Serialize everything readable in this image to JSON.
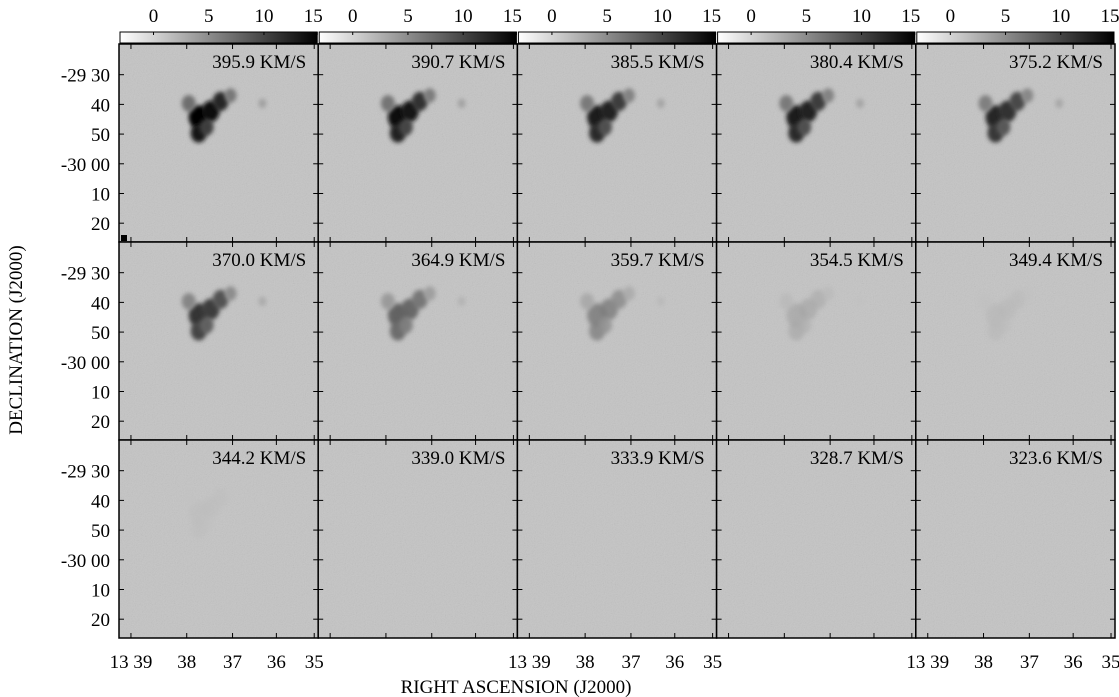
{
  "chart_data": {
    "type": "heatmap",
    "title": "",
    "xlabel": "RIGHT ASCENSION (J2000)",
    "ylabel": "DECLINATION (J2000)",
    "colorbar": {
      "ticks": [
        "0",
        "5",
        "10",
        "15"
      ],
      "range": [
        0,
        15
      ],
      "colormap": "white-to-black grayscale"
    },
    "y_ticks": [
      "-29 30",
      "40",
      "50",
      "-30 00",
      "10",
      "20"
    ],
    "x_ticks_bottom": [
      "13 39",
      "38",
      "37",
      "36",
      "35"
    ],
    "x_ticks_bottom_short": [
      "13 39",
      "38",
      "37",
      "36",
      "35"
    ],
    "grid": "3 rows x 5 columns channel maps",
    "background_color": "#c4c4c4",
    "panels": [
      {
        "label": "395.9 KM/S",
        "peak": 15
      },
      {
        "label": "390.7 KM/S",
        "peak": 14
      },
      {
        "label": "385.5 KM/S",
        "peak": 13
      },
      {
        "label": "380.4 KM/S",
        "peak": 13
      },
      {
        "label": "375.2 KM/S",
        "peak": 12
      },
      {
        "label": "370.0 KM/S",
        "peak": 11
      },
      {
        "label": "364.9 KM/S",
        "peak": 8
      },
      {
        "label": "359.7 KM/S",
        "peak": 6
      },
      {
        "label": "354.5 KM/S",
        "peak": 3
      },
      {
        "label": "349.4 KM/S",
        "peak": 1.5
      },
      {
        "label": "344.2 KM/S",
        "peak": 1
      },
      {
        "label": "339.0 KM/S",
        "peak": 0
      },
      {
        "label": "333.9 KM/S",
        "peak": 0
      },
      {
        "label": "328.7 KM/S",
        "peak": 0
      },
      {
        "label": "323.6 KM/S",
        "peak": 0
      }
    ]
  }
}
